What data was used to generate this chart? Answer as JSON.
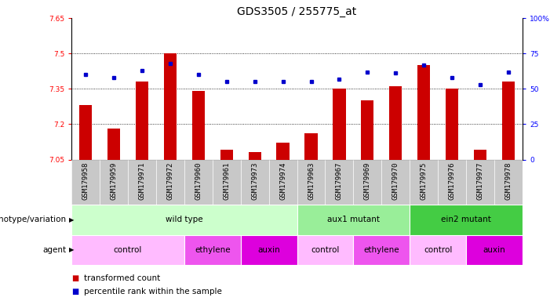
{
  "title": "GDS3505 / 255775_at",
  "samples": [
    "GSM179958",
    "GSM179959",
    "GSM179971",
    "GSM179972",
    "GSM179960",
    "GSM179961",
    "GSM179973",
    "GSM179974",
    "GSM179963",
    "GSM179967",
    "GSM179969",
    "GSM179970",
    "GSM179975",
    "GSM179976",
    "GSM179977",
    "GSM179978"
  ],
  "bar_values": [
    7.28,
    7.18,
    7.38,
    7.5,
    7.34,
    7.09,
    7.08,
    7.12,
    7.16,
    7.35,
    7.3,
    7.36,
    7.45,
    7.35,
    7.09,
    7.38
  ],
  "percentile_values": [
    60,
    58,
    63,
    68,
    60,
    55,
    55,
    55,
    55,
    57,
    62,
    61,
    67,
    58,
    53,
    62
  ],
  "ylim_left": [
    7.05,
    7.65
  ],
  "ylim_right": [
    0,
    100
  ],
  "yticks_left": [
    7.05,
    7.2,
    7.35,
    7.5,
    7.65
  ],
  "yticks_right": [
    0,
    25,
    50,
    75,
    100
  ],
  "bar_color": "#cc0000",
  "dot_color": "#0000cc",
  "bar_width": 0.45,
  "genotype_groups": [
    {
      "label": "wild type",
      "start": 0,
      "end": 8,
      "color": "#ccffcc"
    },
    {
      "label": "aux1 mutant",
      "start": 8,
      "end": 12,
      "color": "#99ee99"
    },
    {
      "label": "ein2 mutant",
      "start": 12,
      "end": 16,
      "color": "#44cc44"
    }
  ],
  "agent_groups": [
    {
      "label": "control",
      "start": 0,
      "end": 4,
      "color": "#ffbbff"
    },
    {
      "label": "ethylene",
      "start": 4,
      "end": 6,
      "color": "#ee55ee"
    },
    {
      "label": "auxin",
      "start": 6,
      "end": 8,
      "color": "#dd00dd"
    },
    {
      "label": "control",
      "start": 8,
      "end": 10,
      "color": "#ffbbff"
    },
    {
      "label": "ethylene",
      "start": 10,
      "end": 12,
      "color": "#ee55ee"
    },
    {
      "label": "control",
      "start": 12,
      "end": 14,
      "color": "#ffbbff"
    },
    {
      "label": "auxin",
      "start": 14,
      "end": 16,
      "color": "#dd00dd"
    }
  ],
  "legend_red": "transformed count",
  "legend_blue": "percentile rank within the sample",
  "row_label_genotype": "genotype/variation",
  "row_label_agent": "agent",
  "title_fontsize": 10,
  "tick_fontsize": 6.5,
  "label_fontsize": 7.5,
  "row_label_fontsize": 7.5,
  "legend_fontsize": 7.5,
  "grid_yticks": [
    7.2,
    7.35,
    7.5
  ]
}
